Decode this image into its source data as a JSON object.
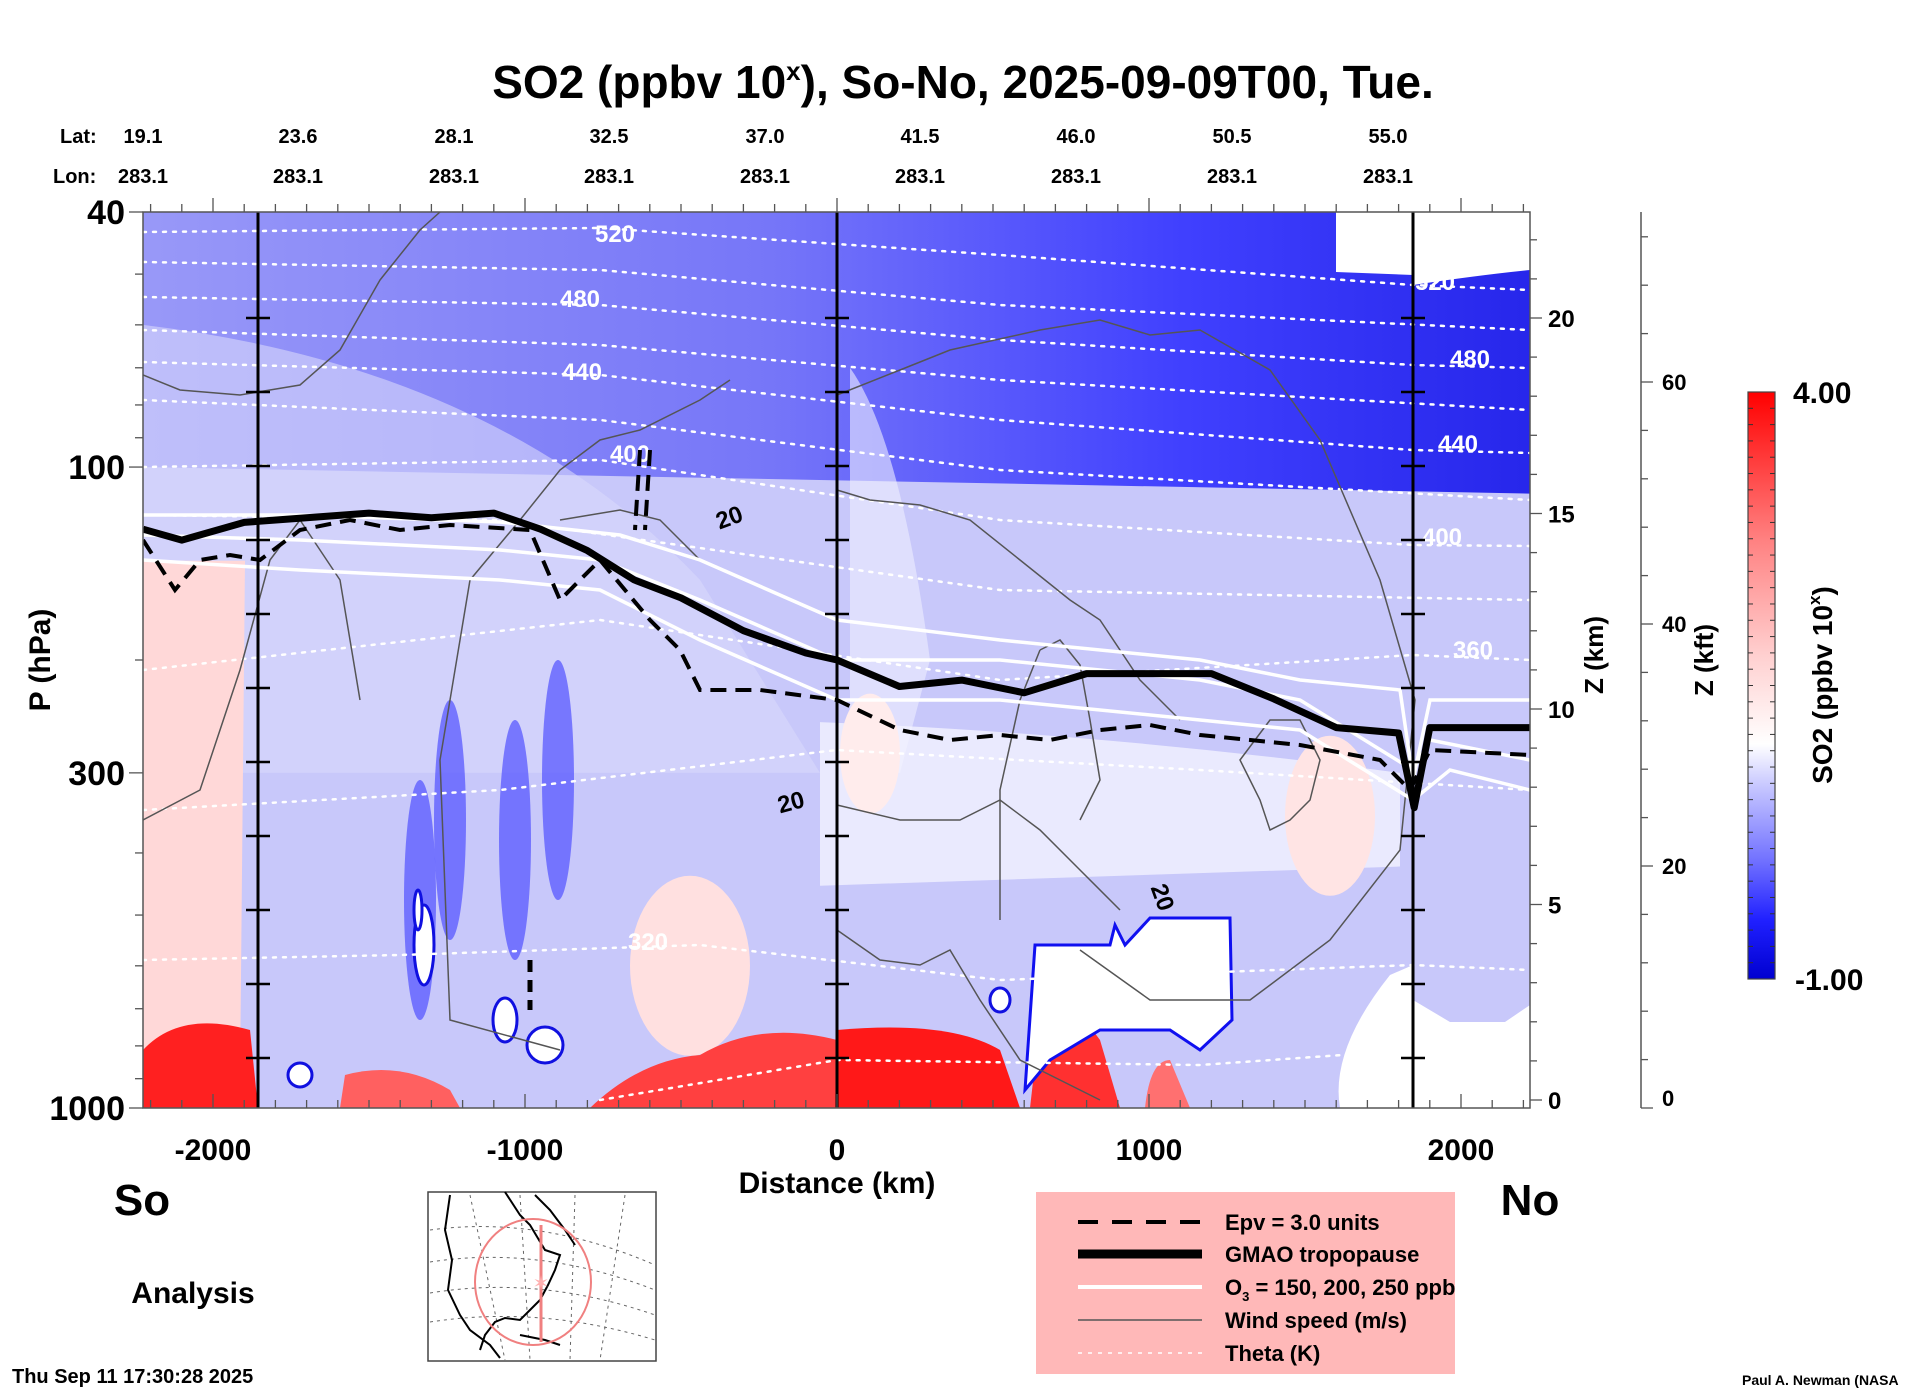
{
  "chart_data": {
    "type": "heatmap",
    "title": "SO2 (ppbv 10",
    "title_superscript": "x",
    "title_suffix": "), So-No, 2025-09-09T00, Tue.",
    "xlabel": "Distance (km)",
    "ylabel": "P (hPa)",
    "y_right_label_km": "Z (km)",
    "y_right_label_kft": "Z (kft)",
    "xlim": [
      -2224,
      2224
    ],
    "ylim_hpa": [
      1000,
      40
    ],
    "x_ticks": [
      -2000,
      -1000,
      0,
      1000,
      2000
    ],
    "x_tick_labels": [
      "-2000",
      "-1000",
      "0",
      "1000",
      "2000"
    ],
    "y_ticks_hpa": [
      40,
      100,
      300,
      1000
    ],
    "y_tick_labels_hpa": [
      "40",
      "100",
      "300",
      "1000"
    ],
    "z_km_ticks": [
      0,
      5,
      10,
      15,
      20
    ],
    "z_km_tick_labels": [
      "0",
      "5",
      "10",
      "15",
      "20"
    ],
    "z_kft_ticks": [
      0,
      20,
      40,
      60
    ],
    "z_kft_tick_labels": [
      "0",
      "20",
      "40",
      "60"
    ],
    "lat_label": "Lat:",
    "lon_label": "Lon:",
    "lat_values": [
      "19.1",
      "23.6",
      "28.1",
      "32.5",
      "37.0",
      "41.5",
      "46.0",
      "50.5",
      "55.0"
    ],
    "lon_values": [
      "283.1",
      "283.1",
      "283.1",
      "283.1",
      "283.1",
      "283.1",
      "283.1",
      "283.1",
      "283.1"
    ],
    "vertical_markers_km": [
      -1850,
      0,
      1850
    ],
    "colorbar": {
      "label": "SO2 (ppbv 10",
      "label_superscript": "x",
      "label_suffix": ")",
      "min": -1.0,
      "max": 4.0,
      "min_label": "-1.00",
      "max_label": "4.00",
      "low_color": "#0000D0",
      "mid_color": "#FFFFFF",
      "high_color": "#FF0000"
    },
    "theta_contours_K": [
      {
        "value": 520,
        "label": "520"
      },
      {
        "value": 480,
        "label": "480"
      },
      {
        "value": 440,
        "label": "440"
      },
      {
        "value": 400,
        "label": "400"
      },
      {
        "value": 360,
        "label": "360"
      },
      {
        "value": 320,
        "label": "320"
      }
    ],
    "wind_contour_label": "20",
    "legend": {
      "position": "bottom-right",
      "background": "#FFB8B8",
      "items": [
        {
          "label": "Epv = 3.0 units",
          "style": "dashed-black"
        },
        {
          "label": "GMAO tropopause",
          "style": "thick-black"
        },
        {
          "label": "O",
          "label_sub": "3",
          "label_rest": " = 150, 200, 250 ppb",
          "style": "white"
        },
        {
          "label": "Wind speed (m/s)",
          "style": "thin-gray"
        },
        {
          "label": "Theta (K)",
          "style": "dotted-white"
        }
      ]
    },
    "tropopause_hpa": [
      [
        -2224,
        125
      ],
      [
        -2100,
        130
      ],
      [
        -1900,
        122
      ],
      [
        -1700,
        120
      ],
      [
        -1500,
        118
      ],
      [
        -1300,
        120
      ],
      [
        -1100,
        118
      ],
      [
        -950,
        125
      ],
      [
        -800,
        135
      ],
      [
        -650,
        150
      ],
      [
        -500,
        160
      ],
      [
        -300,
        180
      ],
      [
        -100,
        195
      ],
      [
        0,
        200
      ],
      [
        200,
        220
      ],
      [
        400,
        215
      ],
      [
        600,
        225
      ],
      [
        800,
        210
      ],
      [
        1000,
        210
      ],
      [
        1200,
        210
      ],
      [
        1400,
        230
      ],
      [
        1600,
        255
      ],
      [
        1800,
        260
      ],
      [
        1850,
        340
      ],
      [
        1900,
        255
      ],
      [
        2224,
        255
      ]
    ],
    "annotations": {
      "south": "So",
      "north": "No",
      "mode": "Analysis",
      "timestamp": "Thu Sep 11 17:30:28 2025",
      "credit": "Paul A. Newman (NASA"
    }
  }
}
